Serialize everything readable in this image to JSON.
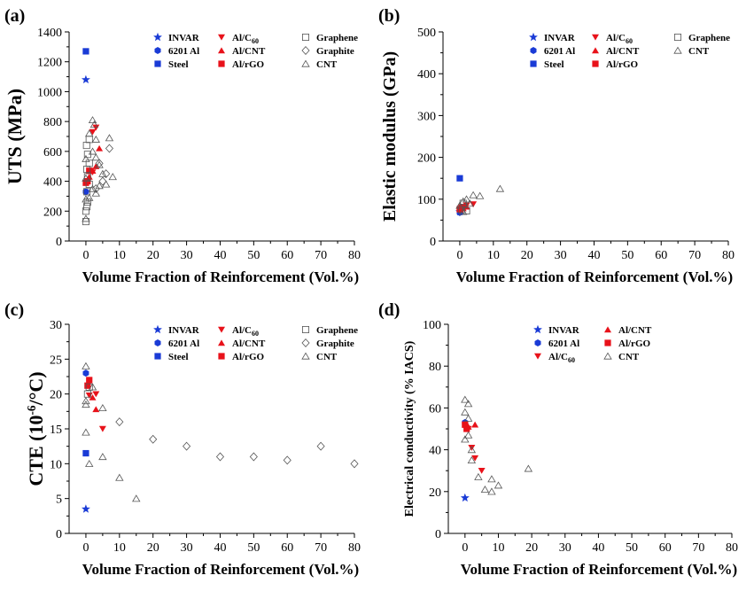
{
  "colors": {
    "blue": "#1a3bd6",
    "red": "#e8121a",
    "axis": "#000000",
    "open": "#555555"
  },
  "chart_data": [
    {
      "panel": "(a)",
      "type": "scatter",
      "xlabel": "Volume Fraction of Reinforcement (Vol.%)",
      "ylabel": "UTS (MPa)",
      "xlim": [
        -5,
        80
      ],
      "ylim": [
        0,
        1400
      ],
      "xticks": [
        0,
        10,
        20,
        30,
        40,
        50,
        60,
        70,
        80
      ],
      "yticks": [
        0,
        200,
        400,
        600,
        800,
        1000,
        1200,
        1400
      ],
      "legend": [
        {
          "label": "INVAR",
          "sub": "",
          "marker": "star",
          "color": "blue"
        },
        {
          "label": "6201 Al",
          "sub": "",
          "marker": "hexagon",
          "color": "blue"
        },
        {
          "label": "Steel",
          "sub": "",
          "marker": "square",
          "color": "blue"
        },
        {
          "label": "Al/C",
          "sub": "60",
          "marker": "tri-down",
          "color": "red"
        },
        {
          "label": "Al/CNT",
          "sub": "",
          "marker": "tri-up",
          "color": "red"
        },
        {
          "label": "Al/rGO",
          "sub": "",
          "marker": "square",
          "color": "red"
        },
        {
          "label": "Graphene",
          "sub": "",
          "marker": "open-square",
          "color": "open"
        },
        {
          "label": "Graphite",
          "sub": "",
          "marker": "open-diamond",
          "color": "open"
        },
        {
          "label": "CNT",
          "sub": "",
          "marker": "open-tri",
          "color": "open"
        }
      ],
      "series": [
        {
          "name": "INVAR",
          "marker": "star",
          "color": "blue",
          "points": [
            [
              0,
              1080
            ]
          ]
        },
        {
          "name": "6201 Al",
          "marker": "hexagon",
          "color": "blue",
          "points": [
            [
              0,
              330
            ]
          ]
        },
        {
          "name": "Steel",
          "marker": "square",
          "color": "blue",
          "points": [
            [
              0,
              1270
            ]
          ]
        },
        {
          "name": "Al/C60",
          "marker": "tri-down",
          "color": "red",
          "points": [
            [
              2,
              730
            ],
            [
              3,
              760
            ],
            [
              2,
              460
            ]
          ]
        },
        {
          "name": "Al/CNT",
          "marker": "tri-up",
          "color": "red",
          "points": [
            [
              4,
              620
            ],
            [
              3,
              500
            ],
            [
              2,
              470
            ],
            [
              1,
              430
            ]
          ]
        },
        {
          "name": "Al/rGO",
          "marker": "square",
          "color": "red",
          "points": [
            [
              0,
              390
            ],
            [
              0.5,
              400
            ],
            [
              1,
              470
            ]
          ]
        },
        {
          "name": "Graphene",
          "marker": "open-square",
          "color": "open",
          "points": [
            [
              0,
              130
            ],
            [
              0,
              200
            ],
            [
              0.3,
              230
            ],
            [
              0.5,
              260
            ],
            [
              0.3,
              330
            ],
            [
              1,
              380
            ],
            [
              0.5,
              430
            ],
            [
              0.3,
              480
            ],
            [
              1,
              520
            ],
            [
              0.5,
              580
            ],
            [
              0.2,
              640
            ],
            [
              1,
              680
            ]
          ]
        },
        {
          "name": "Graphite",
          "marker": "open-diamond",
          "color": "open",
          "points": [
            [
              3,
              350
            ],
            [
              5,
              400
            ],
            [
              6,
              450
            ],
            [
              4,
              520
            ],
            [
              7,
              620
            ]
          ]
        },
        {
          "name": "CNT",
          "marker": "open-tri",
          "color": "open",
          "points": [
            [
              0,
              150
            ],
            [
              0,
              280
            ],
            [
              0,
              420
            ],
            [
              0,
              550
            ],
            [
              1,
              720
            ],
            [
              2,
              810
            ],
            [
              2.5,
              780
            ],
            [
              3,
              680
            ],
            [
              2,
              600
            ],
            [
              3,
              560
            ],
            [
              4,
              510
            ],
            [
              5,
              450
            ],
            [
              6,
              380
            ],
            [
              8,
              430
            ],
            [
              7,
              690
            ],
            [
              3,
              320
            ],
            [
              2,
              350
            ],
            [
              1,
              290
            ],
            [
              4,
              370
            ]
          ]
        }
      ]
    },
    {
      "panel": "(b)",
      "type": "scatter",
      "xlabel": "Volume Fraction of Reinforcement (Vol.%)",
      "ylabel": "Elastic modulus (GPa)",
      "xlim": [
        -5,
        80
      ],
      "ylim": [
        0,
        500
      ],
      "xticks": [
        0,
        10,
        20,
        30,
        40,
        50,
        60,
        70,
        80
      ],
      "yticks": [
        0,
        100,
        200,
        300,
        400,
        500
      ],
      "legend": [
        {
          "label": "INVAR",
          "sub": "",
          "marker": "star",
          "color": "blue"
        },
        {
          "label": "6201 Al",
          "sub": "",
          "marker": "hexagon",
          "color": "blue"
        },
        {
          "label": "Steel",
          "sub": "",
          "marker": "square",
          "color": "blue"
        },
        {
          "label": "Al/C",
          "sub": "60",
          "marker": "tri-down",
          "color": "red"
        },
        {
          "label": "Al/CNT",
          "sub": "",
          "marker": "tri-up",
          "color": "red"
        },
        {
          "label": "Al/rGO",
          "sub": "",
          "marker": "square",
          "color": "red"
        },
        {
          "label": "Graphene",
          "sub": "",
          "marker": "open-square",
          "color": "open"
        },
        {
          "label": "CNT",
          "sub": "",
          "marker": "open-tri",
          "color": "open"
        }
      ],
      "series": [
        {
          "name": "INVAR",
          "marker": "star",
          "color": "blue",
          "points": [
            [
              0,
              70
            ]
          ]
        },
        {
          "name": "6201 Al",
          "marker": "hexagon",
          "color": "blue",
          "points": [
            [
              0,
              68
            ]
          ]
        },
        {
          "name": "Steel",
          "marker": "square",
          "color": "blue",
          "points": [
            [
              0,
              150
            ]
          ]
        },
        {
          "name": "Al/C60",
          "marker": "tri-down",
          "color": "red",
          "points": [
            [
              1,
              80
            ],
            [
              2,
              85
            ],
            [
              4,
              88
            ]
          ]
        },
        {
          "name": "Al/CNT",
          "marker": "tri-up",
          "color": "red",
          "points": [
            [
              1,
              78
            ],
            [
              2,
              82
            ]
          ]
        },
        {
          "name": "Al/rGO",
          "marker": "square",
          "color": "red",
          "points": [
            [
              0.5,
              80
            ],
            [
              0,
              76
            ]
          ]
        },
        {
          "name": "Graphene",
          "marker": "open-square",
          "color": "open",
          "points": [
            [
              0.5,
              75
            ],
            [
              1,
              90
            ],
            [
              2,
              72
            ]
          ]
        },
        {
          "name": "CNT",
          "marker": "open-tri",
          "color": "open",
          "points": [
            [
              0,
              85
            ],
            [
              1,
              95
            ],
            [
              2,
              100
            ],
            [
              4,
              110
            ],
            [
              6,
              108
            ],
            [
              12,
              125
            ],
            [
              3,
              90
            ],
            [
              1,
              70
            ]
          ]
        }
      ]
    },
    {
      "panel": "(c)",
      "type": "scatter",
      "xlabel": "Volume Fraction of Reinforcement (Vol.%)",
      "ylabel": "CTE (10-6/°C)",
      "ylabel_parts": [
        "CTE (10",
        "-6",
        "/°C)"
      ],
      "xlim": [
        -5,
        80
      ],
      "ylim": [
        0,
        30
      ],
      "xticks": [
        0,
        10,
        20,
        30,
        40,
        50,
        60,
        70,
        80
      ],
      "yticks": [
        0,
        5,
        10,
        15,
        20,
        25,
        30
      ],
      "legend": [
        {
          "label": "INVAR",
          "sub": "",
          "marker": "star",
          "color": "blue"
        },
        {
          "label": "6201 Al",
          "sub": "",
          "marker": "hexagon",
          "color": "blue"
        },
        {
          "label": "Steel",
          "sub": "",
          "marker": "square",
          "color": "blue"
        },
        {
          "label": "Al/C",
          "sub": "60",
          "marker": "tri-down",
          "color": "red"
        },
        {
          "label": "Al/CNT",
          "sub": "",
          "marker": "tri-up",
          "color": "red"
        },
        {
          "label": "Al/rGO",
          "sub": "",
          "marker": "square",
          "color": "red"
        },
        {
          "label": "Graphene",
          "sub": "",
          "marker": "open-square",
          "color": "open"
        },
        {
          "label": "Graphite",
          "sub": "",
          "marker": "open-diamond",
          "color": "open"
        },
        {
          "label": "CNT",
          "sub": "",
          "marker": "open-tri",
          "color": "open"
        }
      ],
      "series": [
        {
          "name": "INVAR",
          "marker": "star",
          "color": "blue",
          "points": [
            [
              0,
              3.5
            ]
          ]
        },
        {
          "name": "6201 Al",
          "marker": "hexagon",
          "color": "blue",
          "points": [
            [
              0,
              23
            ]
          ]
        },
        {
          "name": "Steel",
          "marker": "square",
          "color": "blue",
          "points": [
            [
              0,
              11.5
            ]
          ]
        },
        {
          "name": "Al/C60",
          "marker": "tri-down",
          "color": "red",
          "points": [
            [
              1,
              19.8
            ],
            [
              3,
              20
            ],
            [
              5,
              15
            ]
          ]
        },
        {
          "name": "Al/CNT",
          "marker": "tri-up",
          "color": "red",
          "points": [
            [
              2,
              19.5
            ],
            [
              3,
              17.8
            ]
          ]
        },
        {
          "name": "Al/rGO",
          "marker": "square",
          "color": "red",
          "points": [
            [
              0.5,
              21.2
            ],
            [
              1,
              22
            ]
          ]
        },
        {
          "name": "Graphene",
          "marker": "open-square",
          "color": "open",
          "points": [
            [
              0.5,
              20
            ],
            [
              1,
              21
            ]
          ]
        },
        {
          "name": "Graphite",
          "marker": "open-diamond",
          "color": "open",
          "points": [
            [
              10,
              16
            ],
            [
              20,
              13.5
            ],
            [
              30,
              12.5
            ],
            [
              40,
              11
            ],
            [
              50,
              11
            ],
            [
              60,
              10.5
            ],
            [
              70,
              12.5
            ],
            [
              80,
              10
            ]
          ]
        },
        {
          "name": "CNT",
          "marker": "open-tri",
          "color": "open",
          "points": [
            [
              0,
              24
            ],
            [
              0,
              19
            ],
            [
              0,
              18.5
            ],
            [
              0,
              14.5
            ],
            [
              1,
              10
            ],
            [
              2,
              21
            ],
            [
              5,
              18
            ],
            [
              5,
              11
            ],
            [
              10,
              8
            ],
            [
              15,
              5
            ]
          ]
        }
      ]
    },
    {
      "panel": "(d)",
      "type": "scatter",
      "xlabel": "Volume Fraction of Reinforcement (Vol.%)",
      "ylabel": "Electrical conductivity (% IACS)",
      "xlim": [
        -5,
        80
      ],
      "ylim": [
        0,
        100
      ],
      "xticks": [
        0,
        10,
        20,
        30,
        40,
        50,
        60,
        70,
        80
      ],
      "yticks": [
        0,
        20,
        40,
        60,
        80,
        100
      ],
      "legend": [
        {
          "label": "INVAR",
          "sub": "",
          "marker": "star",
          "color": "blue"
        },
        {
          "label": "6201 Al",
          "sub": "",
          "marker": "hexagon",
          "color": "blue"
        },
        {
          "label": "Al/C",
          "sub": "60",
          "marker": "tri-down",
          "color": "red"
        },
        {
          "label": "Al/CNT",
          "sub": "",
          "marker": "tri-up",
          "color": "red"
        },
        {
          "label": "Al/rGO",
          "sub": "",
          "marker": "square",
          "color": "red"
        },
        {
          "label": "CNT",
          "sub": "",
          "marker": "open-tri",
          "color": "open"
        }
      ],
      "series": [
        {
          "name": "INVAR",
          "marker": "star",
          "color": "blue",
          "points": [
            [
              0,
              17
            ]
          ]
        },
        {
          "name": "6201 Al",
          "marker": "hexagon",
          "color": "blue",
          "points": [
            [
              0,
              53
            ]
          ]
        },
        {
          "name": "Al/C60",
          "marker": "tri-down",
          "color": "red",
          "points": [
            [
              1,
              50
            ],
            [
              2,
              41
            ],
            [
              3,
              36
            ],
            [
              5,
              30
            ]
          ]
        },
        {
          "name": "Al/CNT",
          "marker": "tri-up",
          "color": "red",
          "points": [
            [
              1,
              51
            ],
            [
              3,
              52
            ]
          ]
        },
        {
          "name": "Al/rGO",
          "marker": "square",
          "color": "red",
          "points": [
            [
              0,
              52
            ],
            [
              0.5,
              50
            ]
          ]
        },
        {
          "name": "CNT",
          "marker": "open-tri",
          "color": "open",
          "points": [
            [
              0,
              64
            ],
            [
              0,
              58
            ],
            [
              0,
              45
            ],
            [
              1,
              55
            ],
            [
              1,
              47
            ],
            [
              2,
              40
            ],
            [
              2,
              35
            ],
            [
              4,
              27
            ],
            [
              6,
              21
            ],
            [
              8,
              26
            ],
            [
              8,
              20
            ],
            [
              10,
              23
            ],
            [
              19,
              31
            ],
            [
              1,
              62
            ]
          ]
        }
      ]
    }
  ]
}
